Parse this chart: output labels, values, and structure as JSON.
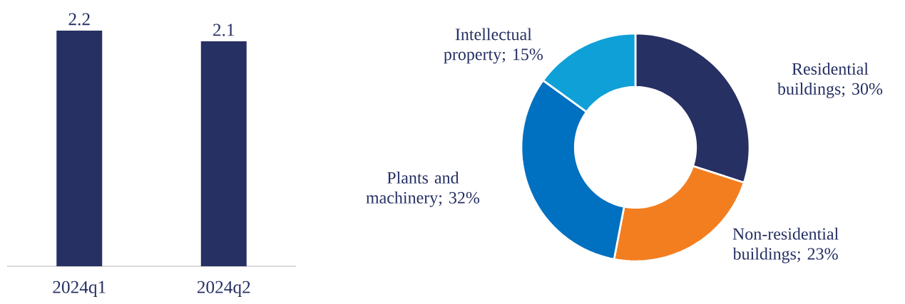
{
  "chart_data": [
    {
      "type": "bar",
      "categories": [
        "2024q1",
        "2024q2"
      ],
      "values": [
        2.2,
        2.1
      ],
      "color": "#263063",
      "data_labels": true
    },
    {
      "type": "donut",
      "categories": [
        "Residential buildings; 30%",
        "Non-residential buildings; 23%",
        "Plants and machinery; 32%",
        "Intellectual property; 15%"
      ],
      "values": [
        30,
        23,
        32,
        15
      ],
      "colors": [
        "#263063",
        "#f37e20",
        "#0070c0",
        "#10a0d8"
      ]
    }
  ]
}
